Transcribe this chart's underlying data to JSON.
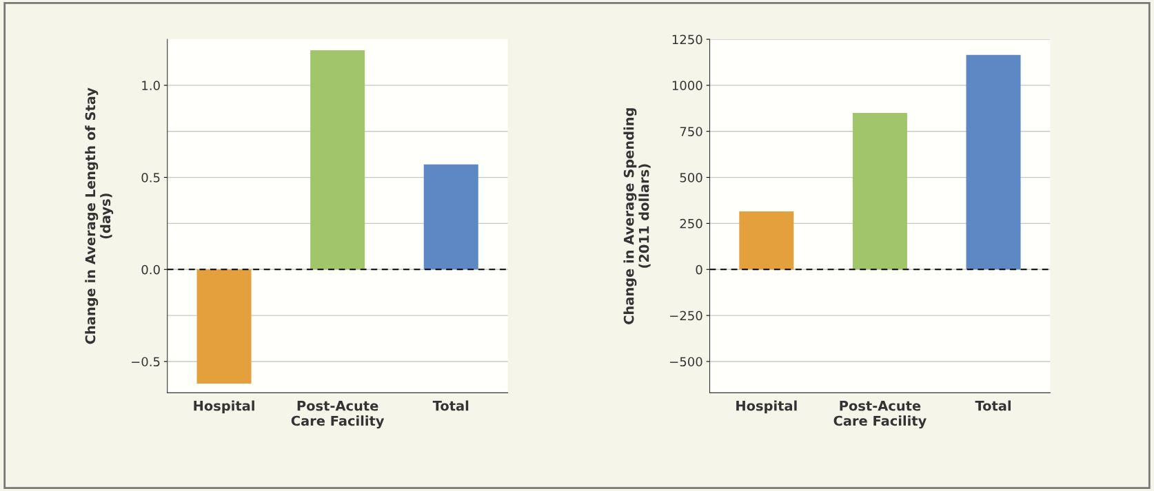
{
  "chart_data": [
    {
      "type": "bar",
      "ylabel": "Change in Average Length of Stay\n(days)",
      "categories": [
        "Hospital",
        "Post-Acute\nCare Facility",
        "Total"
      ],
      "values": [
        -0.62,
        1.19,
        0.57
      ],
      "colors": [
        "#e5a03e",
        "#a0c56b",
        "#5e88c4"
      ],
      "ylim": [
        -0.67,
        1.25
      ],
      "yticks": [
        {
          "value": -0.5,
          "label": "−0.5"
        },
        {
          "value": -0.25,
          "label": null
        },
        {
          "value": 0.0,
          "label": "0.0"
        },
        {
          "value": 0.25,
          "label": null
        },
        {
          "value": 0.5,
          "label": "0.5"
        },
        {
          "value": 0.75,
          "label": null
        },
        {
          "value": 1.0,
          "label": "1.0"
        }
      ],
      "grid": "y",
      "ref_lines": [
        {
          "axis": "y",
          "value": 0,
          "color": "#000000",
          "line_style": "dashed"
        }
      ]
    },
    {
      "type": "bar",
      "ylabel": "Change in Average Spending\n(2011 dollars)",
      "categories": [
        "Hospital",
        "Post-Acute\nCare Facility",
        "Total"
      ],
      "values": [
        315,
        850,
        1165
      ],
      "colors": [
        "#e5a03e",
        "#a0c56b",
        "#5e88c4"
      ],
      "ylim": [
        -670,
        1250
      ],
      "yticks": [
        {
          "value": -500,
          "label": "−500"
        },
        {
          "value": -250,
          "label": "−250"
        },
        0,
        250,
        500,
        750,
        1000,
        1250
      ],
      "grid": "y",
      "ref_lines": [
        {
          "axis": "y",
          "value": 0,
          "color": "#000000",
          "line_style": "dashed"
        }
      ]
    }
  ]
}
